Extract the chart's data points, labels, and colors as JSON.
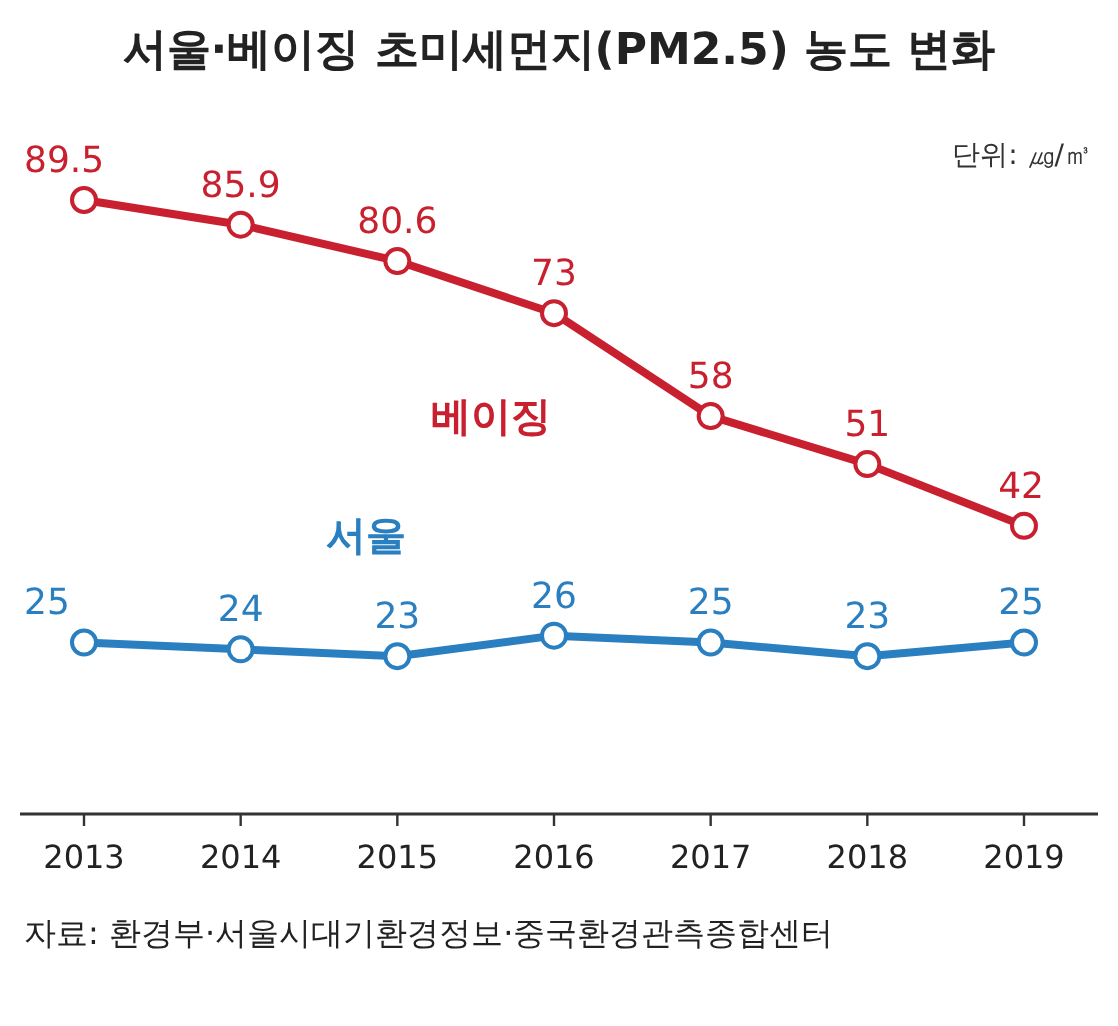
{
  "chart_data": {
    "type": "line",
    "title": "서울·베이징 초미세먼지(PM2.5) 농도 변화",
    "categories": [
      "2013",
      "2014",
      "2015",
      "2016",
      "2017",
      "2018",
      "2019"
    ],
    "series": [
      {
        "name": "베이징",
        "color": "#c8202f",
        "values": [
          89.5,
          85.9,
          80.6,
          73,
          58,
          51,
          42
        ]
      },
      {
        "name": "서울",
        "color": "#2a7fc0",
        "values": [
          25,
          24,
          23,
          26,
          25,
          23,
          25
        ]
      }
    ],
    "data_labels": true,
    "marker": "circle",
    "grid": false,
    "annotations": [
      "단위: ㎍/㎥",
      "자료: 환경부·서울시대기환경정보·중국환경관측종합센터"
    ]
  }
}
